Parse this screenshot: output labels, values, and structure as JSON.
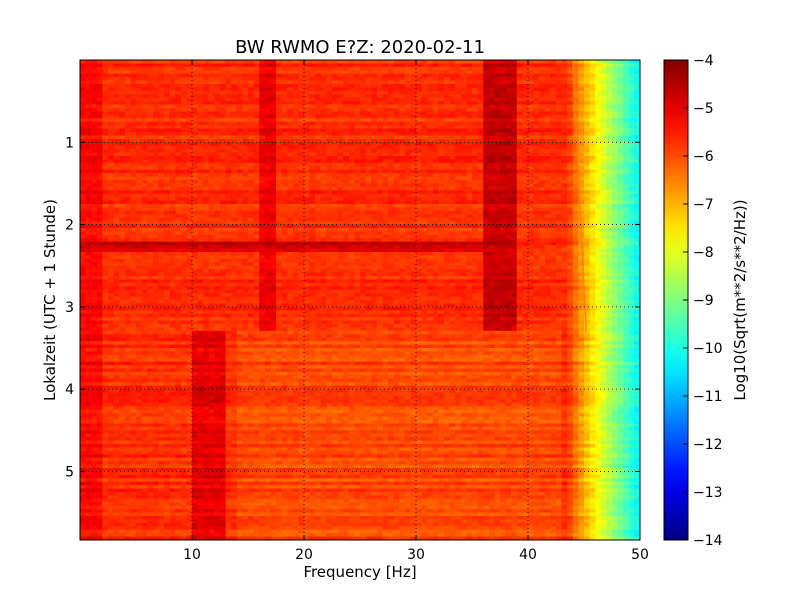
{
  "chart_data": {
    "type": "heatmap",
    "title": "BW RWMO E?Z: 2020-02-11",
    "xlabel": "Frequency [Hz]",
    "ylabel": "Lokalzeit (UTC + 1 Stunde)",
    "xlim": [
      0,
      50
    ],
    "ylim": [
      5.833,
      0
    ],
    "x_ticks": [
      10,
      20,
      30,
      40,
      50
    ],
    "y_ticks": [
      1,
      2,
      3,
      4,
      5
    ],
    "grid": true,
    "colormap": "jet",
    "colorbar": {
      "label": "Log10(Sqrt(m**2/s**2/Hz))",
      "range": [
        -14,
        -4
      ],
      "ticks": [
        -4,
        -5,
        -6,
        -7,
        -8,
        -9,
        -10,
        -11,
        -12,
        -13,
        -14
      ]
    },
    "features": [
      {
        "name": "band",
        "x": [
          0,
          44
        ],
        "y": [
          0,
          5.833
        ],
        "value": -5.7
      },
      {
        "name": "band",
        "x": [
          36,
          39
        ],
        "y": [
          0,
          3.3
        ],
        "value": -4.7
      },
      {
        "name": "band",
        "x": [
          10,
          13
        ],
        "y": [
          3.3,
          5.833
        ],
        "value": -5.0
      },
      {
        "name": "band",
        "x": [
          16,
          17.5
        ],
        "y": [
          0,
          3.3
        ],
        "value": -5.1
      },
      {
        "name": "band",
        "x": [
          43.5,
          50
        ],
        "y": [
          0,
          5.833
        ],
        "value": -8.5
      },
      {
        "name": "band",
        "x": [
          0,
          38
        ],
        "y": [
          2.2,
          2.35
        ],
        "value": -4.8
      },
      {
        "name": "line",
        "x": [
          44,
          45.2
        ],
        "y": [
          0,
          3.3
        ],
        "value": -6.5
      }
    ]
  }
}
